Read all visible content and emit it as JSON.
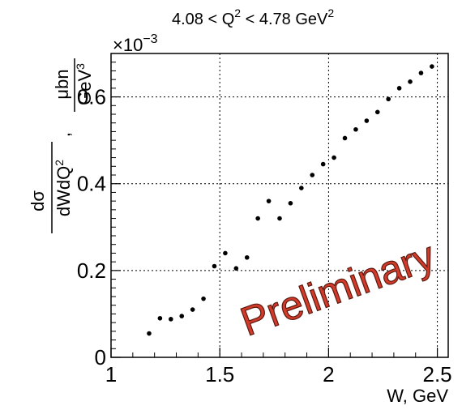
{
  "chart_data": {
    "type": "scatter",
    "title": "4.08 < Q",
    "title_sup1": "2",
    "title_mid": " < 4.78 GeV",
    "title_sup2": "2",
    "exponent_prefix": "×10",
    "exponent_power": "−3",
    "xlabel": "W, GeV",
    "ylabel_num": "dσ",
    "ylabel_den": "dWdQ",
    "ylabel_den_sup": "2",
    "ylabel_sep": ",",
    "yunit_num": "μbn",
    "yunit_den": "GeV",
    "yunit_den_sup": "3",
    "xlim": [
      1.0,
      2.55
    ],
    "ylim": [
      0.0,
      0.7
    ],
    "x_ticks": [
      "1",
      "1.5",
      "2",
      "2.5"
    ],
    "y_ticks": [
      "0",
      "0.2",
      "0.4",
      "0.6"
    ],
    "grid": true,
    "watermark": "Preliminary",
    "marker_color": "#000000",
    "watermark_color": "#d23a2a",
    "x": [
      1.175,
      1.225,
      1.275,
      1.325,
      1.375,
      1.425,
      1.475,
      1.525,
      1.575,
      1.625,
      1.675,
      1.725,
      1.775,
      1.825,
      1.875,
      1.925,
      1.975,
      2.025,
      2.075,
      2.125,
      2.175,
      2.225,
      2.275,
      2.325,
      2.375,
      2.425,
      2.475
    ],
    "y": [
      0.055,
      0.09,
      0.088,
      0.095,
      0.11,
      0.135,
      0.21,
      0.24,
      0.205,
      0.23,
      0.32,
      0.36,
      0.32,
      0.355,
      0.39,
      0.42,
      0.445,
      0.46,
      0.505,
      0.525,
      0.545,
      0.565,
      0.595,
      0.62,
      0.635,
      0.655,
      0.67
    ]
  }
}
